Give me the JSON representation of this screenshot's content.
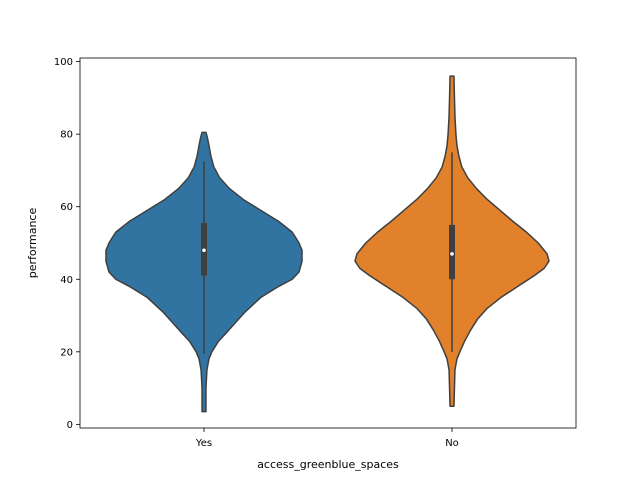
{
  "chart_data": {
    "type": "violin",
    "xlabel": "access_greenblue_spaces",
    "ylabel": "performance",
    "ylim": [
      -1,
      101
    ],
    "yticks": [
      0,
      20,
      40,
      60,
      80,
      100
    ],
    "grid": false,
    "categories": [
      "Yes",
      "No"
    ],
    "violins": [
      {
        "category": "Yes",
        "color": "#3274a1",
        "min": 3.5,
        "max": 80.5,
        "q1": 41,
        "median": 48,
        "q3": 55.5,
        "whisker_low": 19.5,
        "whisker_high": 72.5,
        "density_profile": [
          [
            3.5,
            0.02
          ],
          [
            10,
            0.02
          ],
          [
            15,
            0.03
          ],
          [
            18,
            0.05
          ],
          [
            20,
            0.08
          ],
          [
            23,
            0.15
          ],
          [
            25,
            0.22
          ],
          [
            28,
            0.32
          ],
          [
            31,
            0.42
          ],
          [
            35,
            0.58
          ],
          [
            38,
            0.76
          ],
          [
            40,
            0.9
          ],
          [
            42,
            0.97
          ],
          [
            45,
            1.0
          ],
          [
            48,
            1.0
          ],
          [
            50,
            0.97
          ],
          [
            53,
            0.9
          ],
          [
            56,
            0.76
          ],
          [
            59,
            0.58
          ],
          [
            62,
            0.4
          ],
          [
            65,
            0.26
          ],
          [
            68,
            0.16
          ],
          [
            71,
            0.1
          ],
          [
            74,
            0.07
          ],
          [
            77,
            0.05
          ],
          [
            79,
            0.035
          ],
          [
            80.5,
            0.02
          ]
        ]
      },
      {
        "category": "No",
        "color": "#e1812c",
        "min": 5,
        "max": 96,
        "q1": 40,
        "median": 47,
        "q3": 55,
        "whisker_low": 20,
        "whisker_high": 75,
        "density_profile": [
          [
            5,
            0.02
          ],
          [
            10,
            0.025
          ],
          [
            15,
            0.03
          ],
          [
            18,
            0.05
          ],
          [
            20,
            0.08
          ],
          [
            23,
            0.13
          ],
          [
            26,
            0.19
          ],
          [
            29,
            0.26
          ],
          [
            32,
            0.36
          ],
          [
            35,
            0.5
          ],
          [
            38,
            0.67
          ],
          [
            41,
            0.84
          ],
          [
            43,
            0.94
          ],
          [
            45,
            0.99
          ],
          [
            47,
            0.97
          ],
          [
            50,
            0.88
          ],
          [
            53,
            0.76
          ],
          [
            56,
            0.62
          ],
          [
            59,
            0.49
          ],
          [
            62,
            0.36
          ],
          [
            65,
            0.25
          ],
          [
            68,
            0.16
          ],
          [
            71,
            0.1
          ],
          [
            74,
            0.07
          ],
          [
            77,
            0.05
          ],
          [
            80,
            0.04
          ],
          [
            85,
            0.03
          ],
          [
            90,
            0.025
          ],
          [
            96,
            0.02
          ]
        ]
      }
    ]
  },
  "style": {
    "outline_color": "#3f3f3f",
    "median_color": "#ffffff"
  }
}
